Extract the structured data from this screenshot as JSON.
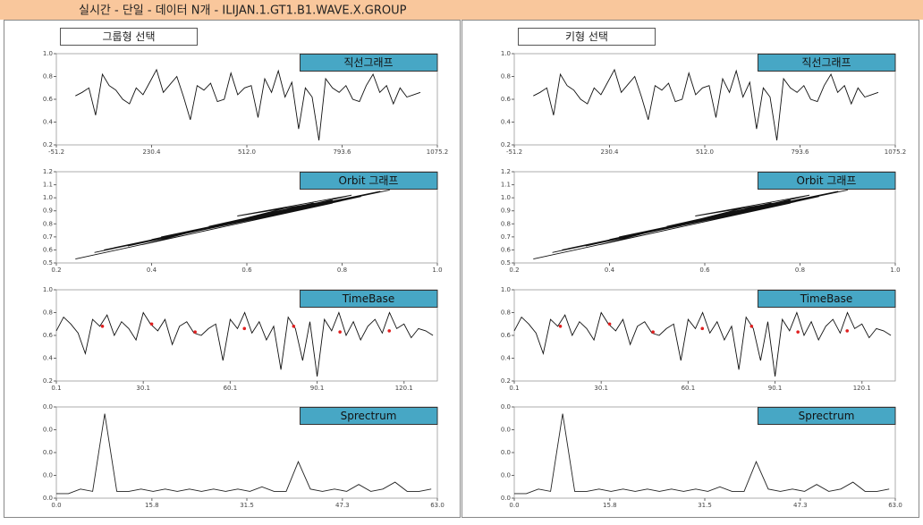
{
  "header": {
    "title": "실시간 - 단일 - 데이터 N개 - ILIJAN.1.GT1.B1.WAVE.X.GROUP"
  },
  "panels": [
    {
      "button": "그룹형 선택"
    },
    {
      "button": "키형 선택"
    }
  ],
  "chart_data": [
    {
      "type": "line",
      "title": "직선그래프",
      "color": "#111111",
      "xlim": [
        -51.2,
        1075.2
      ],
      "xticks": [
        -51.2,
        230.4,
        {
          "value": 512,
          "label": "512.0"
        },
        793.6,
        1075.2
      ],
      "ylim": [
        0.2,
        1
      ],
      "yticks": [
        0.2,
        0.4,
        0.6,
        0.8,
        {
          "value": 1,
          "label": "1.0"
        }
      ],
      "x": [
        5,
        25,
        45,
        65,
        85,
        105,
        125,
        145,
        165,
        185,
        205,
        225,
        245,
        265,
        285,
        305,
        325,
        345,
        365,
        385,
        405,
        425,
        445,
        465,
        485,
        505,
        525,
        545,
        565,
        585,
        605,
        625,
        645,
        665,
        685,
        705,
        725,
        745,
        765,
        785,
        805,
        825,
        845,
        865,
        885,
        905,
        925,
        945,
        965,
        985,
        1005,
        1025
      ],
      "values": [
        0.63,
        0.66,
        0.7,
        0.46,
        0.82,
        0.72,
        0.68,
        0.6,
        0.56,
        0.7,
        0.64,
        0.75,
        0.86,
        0.66,
        0.73,
        0.8,
        0.62,
        0.42,
        0.72,
        0.68,
        0.74,
        0.58,
        0.6,
        0.83,
        0.64,
        0.7,
        0.72,
        0.44,
        0.78,
        0.66,
        0.85,
        0.62,
        0.75,
        0.34,
        0.7,
        0.62,
        0.24,
        0.78,
        0.7,
        0.66,
        0.72,
        0.6,
        0.58,
        0.72,
        0.82,
        0.66,
        0.72,
        0.56,
        0.7,
        0.62,
        0.64,
        0.66
      ]
    },
    {
      "type": "line",
      "title": "Orbit 그래프",
      "color": "#111111",
      "xlim": [
        0.2,
        1
      ],
      "xticks": [
        0.2,
        0.4,
        0.6,
        0.8,
        {
          "value": 1,
          "label": "1.0"
        }
      ],
      "ylim": [
        0.5,
        1.2
      ],
      "yticks": [
        0.5,
        0.6,
        0.7,
        0.8,
        0.9,
        {
          "value": 1,
          "label": "1.0"
        },
        1.1,
        1.2
      ],
      "x": [
        0.24,
        0.78,
        0.3,
        0.82,
        0.35,
        0.74,
        0.4,
        0.86,
        0.28,
        0.7,
        0.45,
        0.9,
        0.33,
        0.76,
        0.5,
        0.84,
        0.38,
        0.68,
        0.55,
        0.8,
        0.42,
        0.88,
        0.6,
        0.72,
        0.48,
        0.82,
        0.58,
        0.78,
        0.52,
        0.74
      ],
      "values": [
        0.53,
        0.96,
        0.6,
        1.0,
        0.63,
        0.95,
        0.68,
        1.03,
        0.58,
        0.9,
        0.72,
        1.06,
        0.62,
        0.97,
        0.76,
        1.01,
        0.64,
        0.92,
        0.8,
        0.99,
        0.7,
        1.05,
        0.84,
        0.93,
        0.74,
        1.02,
        0.86,
        0.98,
        0.78,
        0.96
      ]
    },
    {
      "type": "line",
      "title": "TimeBase",
      "color": "#111111",
      "xlim": [
        0.1,
        131.6
      ],
      "xticks": [
        0.1,
        30.1,
        60.1,
        90.1,
        120.1
      ],
      "ylim": [
        0.2,
        1
      ],
      "yticks": [
        0.2,
        0.4,
        0.6,
        0.8,
        {
          "value": 1,
          "label": "1.0"
        }
      ],
      "x": [
        0.1,
        2.6,
        5.1,
        7.6,
        10.1,
        12.6,
        15.1,
        17.6,
        20.1,
        22.6,
        25.1,
        27.6,
        30.1,
        32.6,
        35.1,
        37.6,
        40.1,
        42.6,
        45.1,
        47.6,
        50.1,
        52.6,
        55.1,
        57.6,
        60.1,
        62.6,
        65.1,
        67.6,
        70.1,
        72.6,
        75.1,
        77.6,
        80.1,
        82.6,
        85.1,
        87.6,
        90.1,
        92.6,
        95.1,
        97.6,
        100.1,
        102.6,
        105.1,
        107.6,
        110.1,
        112.6,
        115.1,
        117.6,
        120.1,
        122.6,
        125.1,
        127.6,
        130.1
      ],
      "values": [
        0.64,
        0.76,
        0.7,
        0.62,
        0.44,
        0.74,
        0.68,
        0.78,
        0.6,
        0.72,
        0.66,
        0.56,
        0.8,
        0.7,
        0.64,
        0.74,
        0.52,
        0.68,
        0.72,
        0.62,
        0.6,
        0.66,
        0.7,
        0.38,
        0.74,
        0.66,
        0.8,
        0.62,
        0.72,
        0.56,
        0.68,
        0.3,
        0.76,
        0.66,
        0.38,
        0.72,
        0.24,
        0.74,
        0.64,
        0.8,
        0.6,
        0.72,
        0.56,
        0.68,
        0.74,
        0.62,
        0.8,
        0.66,
        0.7,
        0.58,
        0.66,
        0.64,
        0.6
      ],
      "markers": {
        "color": "#e02020",
        "x": [
          16,
          33,
          48,
          65,
          82,
          98,
          115
        ],
        "values": [
          0.68,
          0.7,
          0.63,
          0.66,
          0.68,
          0.63,
          0.64
        ]
      }
    },
    {
      "type": "line",
      "title": "Sprectrum",
      "color": "#222222",
      "xlim": [
        0,
        63
      ],
      "xticks": [
        {
          "value": 0,
          "label": "0.0"
        },
        15.8,
        31.5,
        47.3,
        {
          "value": 63,
          "label": "63.0"
        }
      ],
      "ylim": [
        0,
        0.04
      ],
      "yticks": [
        {
          "value": 0,
          "label": "0.0"
        },
        {
          "value": 0.01,
          "label": "0.0"
        },
        {
          "value": 0.02,
          "label": "0.0"
        },
        {
          "value": 0.03,
          "label": "0.0"
        },
        {
          "value": 0.04,
          "label": "0.0"
        }
      ],
      "x": [
        0,
        2,
        4,
        6,
        8,
        10,
        12,
        14,
        16,
        18,
        20,
        22,
        24,
        26,
        28,
        30,
        32,
        34,
        36,
        38,
        40,
        42,
        44,
        46,
        48,
        50,
        52,
        54,
        56,
        58,
        60,
        62
      ],
      "values": [
        0.002,
        0.002,
        0.004,
        0.003,
        0.037,
        0.003,
        0.003,
        0.004,
        0.003,
        0.004,
        0.003,
        0.004,
        0.003,
        0.004,
        0.003,
        0.004,
        0.003,
        0.005,
        0.003,
        0.003,
        0.016,
        0.004,
        0.003,
        0.004,
        0.003,
        0.006,
        0.003,
        0.004,
        0.007,
        0.003,
        0.003,
        0.004
      ]
    }
  ]
}
